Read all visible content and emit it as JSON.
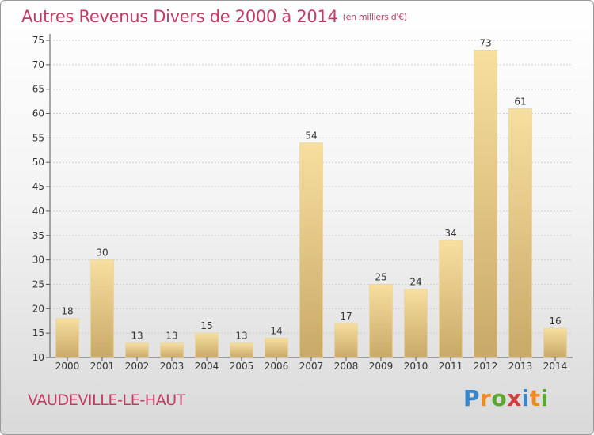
{
  "header": {
    "title": "Autres Revenus Divers de 2000 à 2014",
    "unit": "(en milliers d'€)"
  },
  "footer": {
    "commune": "VAUDEVILLE-LE-HAUT",
    "logo_letters": [
      "P",
      "r",
      "o",
      "x",
      "i",
      "t",
      "i"
    ],
    "logo_colors": [
      "#3a86c8",
      "#f08a1c",
      "#5aa832",
      "#d23c3c",
      "#3a86c8",
      "#f08a1c",
      "#5aa832"
    ]
  },
  "colors": {
    "title": "#c53a63",
    "bar_light": "#f7dfa0",
    "bar_dark": "#c9a968",
    "grid": "#cfcfcf"
  },
  "chart_data": {
    "type": "bar",
    "categories": [
      "2000",
      "2001",
      "2002",
      "2003",
      "2004",
      "2005",
      "2006",
      "2007",
      "2008",
      "2009",
      "2010",
      "2011",
      "2012",
      "2013",
      "2014"
    ],
    "values": [
      18,
      30,
      13,
      13,
      15,
      13,
      14,
      54,
      17,
      25,
      24,
      34,
      73,
      61,
      16
    ],
    "ylim": [
      10,
      75
    ],
    "yticks": [
      10,
      15,
      20,
      25,
      30,
      35,
      40,
      45,
      50,
      55,
      60,
      65,
      70,
      75
    ],
    "grid": true,
    "data_labels": true
  }
}
